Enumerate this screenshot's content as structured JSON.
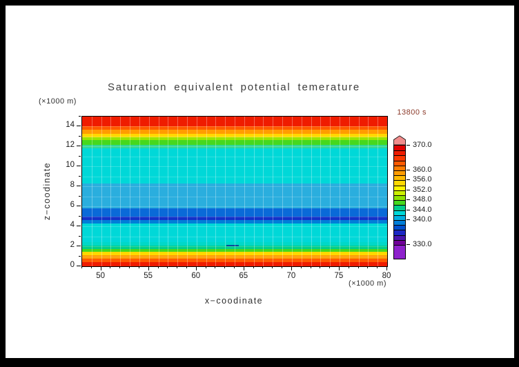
{
  "window": {
    "background": "#000000",
    "canvas_background": "#ffffff"
  },
  "title": "Saturation equivalent potential temerature",
  "time_label": {
    "text": "13800 s",
    "color": "#8b3a2a"
  },
  "y_unit_label": "(×1000 m)",
  "x_unit_label": "(×1000 m)",
  "x_axis": {
    "label": "x−coodinate",
    "range": [
      48,
      80
    ],
    "major_ticks": [
      50,
      55,
      60,
      65,
      70,
      75,
      80
    ],
    "minor_step": 1
  },
  "y_axis": {
    "label": "z−coodinate",
    "range": [
      0,
      15
    ],
    "major_ticks": [
      0,
      2,
      4,
      6,
      8,
      10,
      12,
      14
    ],
    "minor_step": 1
  },
  "chart_data": {
    "type": "heatmap",
    "title": "Saturation equivalent potential temerature",
    "time": "13800 s",
    "xlabel": "x−coodinate (×1000 m)",
    "ylabel": "z−coodinate (×1000 m)",
    "x_range": [
      48,
      80
    ],
    "z_range": [
      0,
      15
    ],
    "grid": {
      "x_step": 1,
      "z_step": 1
    },
    "bands": [
      {
        "z_from": 0.0,
        "z_to": 0.4,
        "value": "366-368",
        "color": "#ef1c00"
      },
      {
        "z_from": 0.4,
        "z_to": 0.75,
        "value": "362-364",
        "color": "#ff5a00"
      },
      {
        "z_from": 0.75,
        "z_to": 1.1,
        "value": "358-360",
        "color": "#ff9c00"
      },
      {
        "z_from": 1.1,
        "z_to": 1.45,
        "value": "354-356",
        "color": "#ffd800"
      },
      {
        "z_from": 1.45,
        "z_to": 1.75,
        "value": "346-348",
        "color": "#46d81e"
      },
      {
        "z_from": 1.75,
        "z_to": 2.1,
        "value": "344-346",
        "color": "#00cd8c"
      },
      {
        "z_from": 2.1,
        "z_to": 2.45,
        "value": "344",
        "color": "#00d8c8"
      },
      {
        "z_from": 2.45,
        "z_to": 4.3,
        "value": "342-344",
        "color": "#00d8d8"
      },
      {
        "z_from": 4.3,
        "z_to": 4.6,
        "value": "338-340",
        "color": "#007ed8"
      },
      {
        "z_from": 4.6,
        "z_to": 5.0,
        "value": "336-338",
        "color": "#1432c8"
      },
      {
        "z_from": 5.0,
        "z_to": 5.8,
        "value": "338-340",
        "color": "#0a6ad8"
      },
      {
        "z_from": 5.8,
        "z_to": 8.3,
        "value": "340-342",
        "color": "#2aaede"
      },
      {
        "z_from": 8.3,
        "z_to": 11.8,
        "value": "342-344",
        "color": "#00d8d8"
      },
      {
        "z_from": 11.8,
        "z_to": 12.15,
        "value": "344-346",
        "color": "#2fd898"
      },
      {
        "z_from": 12.15,
        "z_to": 12.65,
        "value": "346-348",
        "color": "#46d81e"
      },
      {
        "z_from": 12.65,
        "z_to": 12.95,
        "value": "348-350",
        "color": "#9ae400"
      },
      {
        "z_from": 12.95,
        "z_to": 13.3,
        "value": "352-356",
        "color": "#ffd800"
      },
      {
        "z_from": 13.3,
        "z_to": 13.7,
        "value": "358-360",
        "color": "#ff9c00"
      },
      {
        "z_from": 13.7,
        "z_to": 14.05,
        "value": "362-364",
        "color": "#ff5a00"
      },
      {
        "z_from": 14.05,
        "z_to": 15.0,
        "value": "366-370",
        "color": "#ef1c00"
      }
    ],
    "contour_dash": {
      "x_from": 63.1,
      "x_to": 64.4,
      "z": 2.05,
      "color": "#0a4a9a"
    },
    "colorbar": {
      "top_value": 370,
      "arrow_color": "#f08c8c",
      "labels": [
        "370.0",
        "360.0",
        "356.0",
        "352.0",
        "348.0",
        "344.0",
        "340.0",
        "330.0"
      ],
      "label_values": [
        370,
        360,
        356,
        352,
        348,
        344,
        340,
        330
      ],
      "segments": [
        {
          "from": 368,
          "to": 370,
          "color": "#e10000"
        },
        {
          "from": 366,
          "to": 368,
          "color": "#ef1c00"
        },
        {
          "from": 364,
          "to": 366,
          "color": "#fb3800"
        },
        {
          "from": 362,
          "to": 364,
          "color": "#ff5a00"
        },
        {
          "from": 360,
          "to": 362,
          "color": "#ff7c00"
        },
        {
          "from": 358,
          "to": 360,
          "color": "#ff9c00"
        },
        {
          "from": 356,
          "to": 358,
          "color": "#ffbc00"
        },
        {
          "from": 354,
          "to": 356,
          "color": "#ffd800"
        },
        {
          "from": 352,
          "to": 354,
          "color": "#fff400"
        },
        {
          "from": 350,
          "to": 352,
          "color": "#cdf000"
        },
        {
          "from": 348,
          "to": 350,
          "color": "#8fe400"
        },
        {
          "from": 346,
          "to": 348,
          "color": "#46d81e"
        },
        {
          "from": 344,
          "to": 346,
          "color": "#00cd8c"
        },
        {
          "from": 342,
          "to": 344,
          "color": "#00d8d8"
        },
        {
          "from": 340,
          "to": 342,
          "color": "#00b0e4"
        },
        {
          "from": 338,
          "to": 340,
          "color": "#007ed8"
        },
        {
          "from": 336,
          "to": 338,
          "color": "#004ecd"
        },
        {
          "from": 334,
          "to": 336,
          "color": "#1c28c4"
        },
        {
          "from": 332,
          "to": 334,
          "color": "#4a14ae"
        },
        {
          "from": 330,
          "to": 332,
          "color": "#700098"
        },
        {
          "from": 324.4,
          "to": 330,
          "color": "#8e22cc"
        }
      ]
    }
  }
}
